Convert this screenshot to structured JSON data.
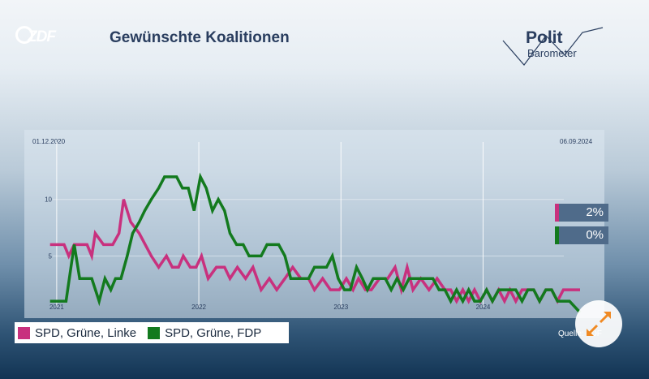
{
  "header": {
    "broadcaster_logo": "ZDF",
    "title": "Gewünschte Koalitionen",
    "brand_line1": "Polit",
    "brand_line2": "Barometer"
  },
  "chart_data": {
    "type": "line",
    "title": "Gewünschte Koalitionen",
    "start_date_label": "01.12.2020",
    "end_date_label": "06.09.2024",
    "x_tick_labels": [
      "2021",
      "2022",
      "2023",
      "2024"
    ],
    "y_tick_labels": [
      "10",
      "5"
    ],
    "xlim": [
      "2020-12-01",
      "2024-09-06"
    ],
    "ylim": [
      0,
      14
    ],
    "grid": true,
    "legend": "bottom-left",
    "colors": {
      "pink": "#c8317e",
      "green": "#137a1e"
    },
    "series": [
      {
        "name": "SPD, Grüne, Linke",
        "color": "#c8317e",
        "points": [
          [
            "2020-12-15",
            6
          ],
          [
            "2021-01-20",
            6
          ],
          [
            "2021-02-01",
            5
          ],
          [
            "2021-02-15",
            6
          ],
          [
            "2021-03-20",
            6
          ],
          [
            "2021-04-01",
            5
          ],
          [
            "2021-04-10",
            7
          ],
          [
            "2021-05-01",
            6
          ],
          [
            "2021-05-25",
            6
          ],
          [
            "2021-06-10",
            7
          ],
          [
            "2021-06-22",
            10
          ],
          [
            "2021-07-10",
            8
          ],
          [
            "2021-08-01",
            7
          ],
          [
            "2021-09-01",
            5
          ],
          [
            "2021-09-20",
            4
          ],
          [
            "2021-10-10",
            5
          ],
          [
            "2021-10-25",
            4
          ],
          [
            "2021-11-10",
            4
          ],
          [
            "2021-11-22",
            5
          ],
          [
            "2021-12-10",
            4
          ],
          [
            "2021-12-25",
            4
          ],
          [
            "2022-01-08",
            5
          ],
          [
            "2022-01-25",
            3
          ],
          [
            "2022-02-15",
            4
          ],
          [
            "2022-03-08",
            4
          ],
          [
            "2022-03-22",
            3
          ],
          [
            "2022-04-10",
            4
          ],
          [
            "2022-05-01",
            3
          ],
          [
            "2022-05-20",
            4
          ],
          [
            "2022-06-10",
            2
          ],
          [
            "2022-07-01",
            3
          ],
          [
            "2022-07-20",
            2
          ],
          [
            "2022-08-10",
            3
          ],
          [
            "2022-08-30",
            4
          ],
          [
            "2022-09-20",
            3
          ],
          [
            "2022-10-10",
            3
          ],
          [
            "2022-10-25",
            2
          ],
          [
            "2022-11-15",
            3
          ],
          [
            "2022-12-05",
            2
          ],
          [
            "2022-12-28",
            2
          ],
          [
            "2023-01-15",
            3
          ],
          [
            "2023-02-01",
            2
          ],
          [
            "2023-02-15",
            3
          ],
          [
            "2023-03-05",
            2
          ],
          [
            "2023-03-20",
            2
          ],
          [
            "2023-04-10",
            3
          ],
          [
            "2023-05-01",
            3
          ],
          [
            "2023-05-20",
            4
          ],
          [
            "2023-06-05",
            2
          ],
          [
            "2023-06-20",
            4
          ],
          [
            "2023-07-05",
            2
          ],
          [
            "2023-07-25",
            3
          ],
          [
            "2023-08-15",
            2
          ],
          [
            "2023-09-05",
            3
          ],
          [
            "2023-09-25",
            2
          ],
          [
            "2023-10-10",
            2
          ],
          [
            "2023-10-25",
            1
          ],
          [
            "2023-11-10",
            2
          ],
          [
            "2023-11-25",
            1
          ],
          [
            "2023-12-10",
            2
          ],
          [
            "2023-12-25",
            1
          ],
          [
            "2024-01-10",
            2
          ],
          [
            "2024-01-25",
            1
          ],
          [
            "2024-02-10",
            2
          ],
          [
            "2024-02-25",
            1
          ],
          [
            "2024-03-10",
            2
          ],
          [
            "2024-03-25",
            1
          ],
          [
            "2024-04-10",
            2
          ],
          [
            "2024-04-25",
            2
          ],
          [
            "2024-05-10",
            2
          ],
          [
            "2024-05-25",
            1
          ],
          [
            "2024-06-10",
            2
          ],
          [
            "2024-06-25",
            2
          ],
          [
            "2024-07-10",
            1
          ],
          [
            "2024-07-25",
            2
          ],
          [
            "2024-08-10",
            2
          ],
          [
            "2024-09-06",
            2
          ]
        ]
      },
      {
        "name": "SPD, Grüne, FDP",
        "color": "#137a1e",
        "points": [
          [
            "2020-12-15",
            1
          ],
          [
            "2021-01-10",
            1
          ],
          [
            "2021-01-25",
            1
          ],
          [
            "2021-02-15",
            6
          ],
          [
            "2021-03-01",
            3
          ],
          [
            "2021-03-20",
            3
          ],
          [
            "2021-04-01",
            3
          ],
          [
            "2021-04-20",
            1
          ],
          [
            "2021-05-05",
            3
          ],
          [
            "2021-05-20",
            2
          ],
          [
            "2021-06-01",
            3
          ],
          [
            "2021-06-15",
            3
          ],
          [
            "2021-07-01",
            5
          ],
          [
            "2021-07-15",
            7
          ],
          [
            "2021-08-01",
            8
          ],
          [
            "2021-08-15",
            9
          ],
          [
            "2021-09-01",
            10
          ],
          [
            "2021-09-20",
            11
          ],
          [
            "2021-10-05",
            12
          ],
          [
            "2021-10-20",
            12
          ],
          [
            "2021-11-05",
            12
          ],
          [
            "2021-11-20",
            11
          ],
          [
            "2021-12-05",
            11
          ],
          [
            "2021-12-20",
            9
          ],
          [
            "2022-01-05",
            12
          ],
          [
            "2022-01-20",
            11
          ],
          [
            "2022-02-05",
            9
          ],
          [
            "2022-02-20",
            10
          ],
          [
            "2022-03-08",
            9
          ],
          [
            "2022-03-22",
            7
          ],
          [
            "2022-04-08",
            6
          ],
          [
            "2022-04-25",
            6
          ],
          [
            "2022-05-10",
            5
          ],
          [
            "2022-05-25",
            5
          ],
          [
            "2022-06-10",
            5
          ],
          [
            "2022-06-25",
            6
          ],
          [
            "2022-07-10",
            6
          ],
          [
            "2022-07-25",
            6
          ],
          [
            "2022-08-10",
            5
          ],
          [
            "2022-08-25",
            3
          ],
          [
            "2022-09-10",
            3
          ],
          [
            "2022-09-25",
            3
          ],
          [
            "2022-10-10",
            3
          ],
          [
            "2022-10-25",
            4
          ],
          [
            "2022-11-10",
            4
          ],
          [
            "2022-11-25",
            4
          ],
          [
            "2022-12-10",
            5
          ],
          [
            "2022-12-25",
            3
          ],
          [
            "2023-01-10",
            2
          ],
          [
            "2023-01-25",
            2
          ],
          [
            "2023-02-10",
            4
          ],
          [
            "2023-02-25",
            3
          ],
          [
            "2023-03-10",
            2
          ],
          [
            "2023-03-25",
            3
          ],
          [
            "2023-04-10",
            3
          ],
          [
            "2023-04-25",
            3
          ],
          [
            "2023-05-10",
            2
          ],
          [
            "2023-05-25",
            3
          ],
          [
            "2023-06-10",
            2
          ],
          [
            "2023-06-25",
            3
          ],
          [
            "2023-07-10",
            3
          ],
          [
            "2023-07-25",
            3
          ],
          [
            "2023-08-10",
            3
          ],
          [
            "2023-08-25",
            3
          ],
          [
            "2023-09-10",
            2
          ],
          [
            "2023-09-25",
            2
          ],
          [
            "2023-10-10",
            1
          ],
          [
            "2023-10-25",
            2
          ],
          [
            "2023-11-10",
            1
          ],
          [
            "2023-11-25",
            2
          ],
          [
            "2023-12-10",
            1
          ],
          [
            "2023-12-25",
            1
          ],
          [
            "2024-01-10",
            2
          ],
          [
            "2024-01-25",
            1
          ],
          [
            "2024-02-10",
            2
          ],
          [
            "2024-02-25",
            2
          ],
          [
            "2024-03-10",
            2
          ],
          [
            "2024-03-25",
            2
          ],
          [
            "2024-04-10",
            1
          ],
          [
            "2024-04-25",
            2
          ],
          [
            "2024-05-10",
            2
          ],
          [
            "2024-05-25",
            1
          ],
          [
            "2024-06-10",
            2
          ],
          [
            "2024-06-25",
            2
          ],
          [
            "2024-07-10",
            1
          ],
          [
            "2024-07-25",
            1
          ],
          [
            "2024-08-10",
            1
          ],
          [
            "2024-09-06",
            0
          ]
        ]
      }
    ],
    "end_labels": [
      {
        "series": "SPD, Grüne, Linke",
        "text": "2%"
      },
      {
        "series": "SPD, Grüne, FDP",
        "text": "0%"
      }
    ]
  },
  "legend": {
    "items": [
      {
        "label": "SPD, Grüne, Linke",
        "color": "#c8317e"
      },
      {
        "label": "SPD, Grüne, FDP",
        "color": "#137a1e"
      }
    ]
  },
  "footer": {
    "source": "Quelle: ZDF"
  },
  "controls": {
    "expand_icon": "expand-arrows-icon"
  }
}
